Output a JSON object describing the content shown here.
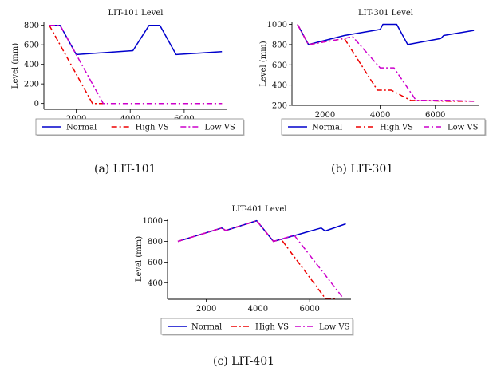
{
  "chart_data": [
    {
      "type": "line",
      "title": "LIT-101 Level",
      "ylabel": "Level (mm)",
      "xlim": [
        800,
        7600
      ],
      "ylim": [
        -60,
        830
      ],
      "xticks": [
        2000,
        4000,
        6000
      ],
      "yticks": [
        0,
        200,
        400,
        600,
        800
      ],
      "grid": false,
      "legend_position": "bottom",
      "caption": "(a)  LIT-101",
      "series": [
        {
          "name": "Normal",
          "color": "#0000cc",
          "style": "solid",
          "x": [
            1000,
            1400,
            2000,
            4100,
            4700,
            5100,
            5700,
            7400
          ],
          "y": [
            800,
            800,
            500,
            540,
            800,
            800,
            500,
            530
          ]
        },
        {
          "name": "High VS",
          "color": "#ee0000",
          "style": "dashdot",
          "x": [
            1000,
            2600,
            7400
          ],
          "y": [
            800,
            0,
            0
          ]
        },
        {
          "name": "Low VS",
          "color": "#cc00cc",
          "style": "dashdot",
          "x": [
            1000,
            1400,
            3000,
            7400
          ],
          "y": [
            800,
            800,
            0,
            0
          ]
        }
      ]
    },
    {
      "type": "line",
      "title": "LIT-301 Level",
      "ylabel": "Level (mm)",
      "xlim": [
        800,
        7600
      ],
      "ylim": [
        200,
        1020
      ],
      "xticks": [
        2000,
        4000,
        6000
      ],
      "yticks": [
        200,
        400,
        600,
        800,
        1000
      ],
      "grid": false,
      "legend_position": "bottom",
      "caption": "(b)  LIT-301",
      "series": [
        {
          "name": "Normal",
          "color": "#0000cc",
          "style": "solid",
          "x": [
            1000,
            1400,
            2700,
            4000,
            4100,
            4600,
            5000,
            6200,
            6300,
            7400
          ],
          "y": [
            1000,
            800,
            890,
            950,
            1000,
            1000,
            800,
            860,
            890,
            940
          ]
        },
        {
          "name": "High VS",
          "color": "#ee0000",
          "style": "dashdot",
          "x": [
            1000,
            1400,
            2700,
            3900,
            4400,
            5100,
            6500,
            7400
          ],
          "y": [
            1000,
            800,
            860,
            350,
            350,
            250,
            240,
            240
          ]
        },
        {
          "name": "Low VS",
          "color": "#cc00cc",
          "style": "dashdot",
          "x": [
            1000,
            1400,
            2700,
            3000,
            4000,
            4500,
            5300,
            6500,
            7400
          ],
          "y": [
            1000,
            800,
            860,
            880,
            570,
            570,
            250,
            250,
            240
          ]
        }
      ]
    },
    {
      "type": "line",
      "title": "LIT-401 Level",
      "ylabel": "Level (mm)",
      "xlim": [
        500,
        7600
      ],
      "ylim": [
        240,
        1020
      ],
      "xticks": [
        2000,
        4000,
        6000
      ],
      "yticks": [
        400,
        600,
        800,
        1000
      ],
      "grid": false,
      "legend_position": "bottom",
      "caption": "(c)  LIT-401",
      "series": [
        {
          "name": "Normal",
          "color": "#0000cc",
          "style": "solid",
          "x": [
            900,
            2600,
            2750,
            3950,
            4600,
            4900,
            6450,
            6600,
            7400
          ],
          "y": [
            800,
            930,
            905,
            1000,
            800,
            820,
            930,
            900,
            970
          ]
        },
        {
          "name": "High VS",
          "color": "#ee0000",
          "style": "dashdot",
          "x": [
            900,
            2600,
            2750,
            3950,
            4600,
            4900,
            6600,
            7000
          ],
          "y": [
            800,
            930,
            905,
            1000,
            800,
            820,
            250,
            250
          ]
        },
        {
          "name": "Low VS",
          "color": "#cc00cc",
          "style": "dashdot",
          "x": [
            900,
            2600,
            2750,
            3950,
            4600,
            4900,
            5400,
            7300
          ],
          "y": [
            800,
            930,
            905,
            1000,
            800,
            820,
            860,
            250
          ]
        }
      ]
    }
  ]
}
